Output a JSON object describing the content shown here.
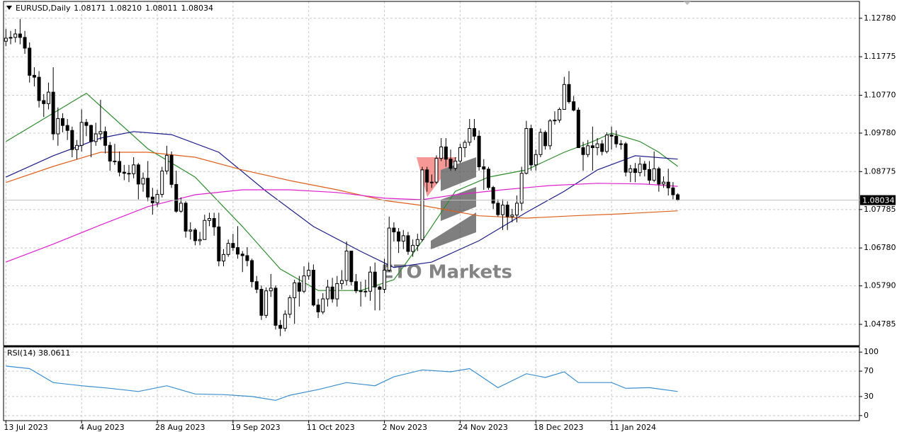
{
  "chart_data": {
    "type": "candlestick",
    "title": "EURUSD,Daily",
    "ohlc_labels": [
      "1.08171",
      "1.08210",
      "1.08011",
      "1.08034"
    ],
    "price_label": "1.08034",
    "watermark": "ETO Markets",
    "xlim": [
      -0.5,
      180.4
    ],
    "xticks": [
      {
        "value": 0,
        "label": "13 Jul 2023"
      },
      {
        "value": 16,
        "label": "4 Aug 2023"
      },
      {
        "value": 32,
        "label": "28 Aug 2023"
      },
      {
        "value": 48,
        "label": "19 Sep 2023"
      },
      {
        "value": 64,
        "label": "11 Oct 2023"
      },
      {
        "value": 80,
        "label": "2 Nov 2023"
      },
      {
        "value": 96,
        "label": "24 Nov 2023"
      },
      {
        "value": 112,
        "label": "18 Dec 2023"
      },
      {
        "value": 128,
        "label": "11 Jan 2024"
      }
    ],
    "ylim": [
      1.0423,
      1.1322
    ],
    "yticks": [
      {
        "value": 1.1278,
        "label": "1.12780"
      },
      {
        "value": 1.11775,
        "label": "1.11775"
      },
      {
        "value": 1.1077,
        "label": "1.10770"
      },
      {
        "value": 1.0978,
        "label": "1.09780"
      },
      {
        "value": 1.08775,
        "label": "1.08775"
      },
      {
        "value": 1.07785,
        "label": "1.07785"
      },
      {
        "value": 1.0678,
        "label": "1.06780"
      },
      {
        "value": 1.0579,
        "label": "1.05790"
      },
      {
        "value": 1.04785,
        "label": "1.04785"
      }
    ],
    "grid": true,
    "open": [
      1.1218,
      1.1226,
      1.1228,
      1.1237,
      1.1228,
      1.12,
      1.1129,
      1.1124,
      1.1063,
      1.1055,
      1.1085,
      1.0976,
      1.1016,
      1.0998,
      1.0985,
      1.0935,
      1.0946,
      1.1006,
      1.0998,
      1.0956,
      1.0976,
      1.0982,
      1.0946,
      1.0905,
      1.0904,
      1.0876,
      1.0873,
      1.0872,
      1.0895,
      1.0845,
      1.086,
      1.0811,
      1.0796,
      1.0818,
      1.0879,
      1.092,
      1.0844,
      1.0774,
      1.0795,
      1.0722,
      1.0725,
      1.0697,
      1.07,
      1.075,
      1.0755,
      1.0733,
      1.0644,
      1.0661,
      1.069,
      1.0679,
      1.0662,
      1.0658,
      1.0645,
      1.059,
      1.057,
      1.0502,
      1.0566,
      1.0573,
      1.0476,
      1.0468,
      1.0505,
      1.0548,
      1.0587,
      1.0565,
      1.0605,
      1.062,
      1.0529,
      1.0511,
      1.0545,
      1.0576,
      1.0545,
      1.0585,
      1.0593,
      1.067,
      1.059,
      1.0566,
      1.0564,
      1.0565,
      1.0615,
      1.0576,
      1.057,
      1.062,
      1.073,
      1.072,
      1.0696,
      1.071,
      1.0669,
      1.0685,
      1.07,
      1.0882,
      1.085,
      1.085,
      1.0912,
      1.0942,
      1.091,
      1.0886,
      1.0905,
      1.094,
      1.0954,
      1.099,
      1.097,
      1.089,
      1.0884,
      1.0836,
      1.0795,
      1.0765,
      1.079,
      1.076,
      1.0764,
      1.0795,
      1.0873,
      1.099,
      1.0895,
      1.0922,
      1.098,
      1.0945,
      1.101,
      1.1012,
      1.104,
      1.1105,
      1.106,
      1.1038,
      1.094,
      1.0922,
      1.0945,
      1.094,
      1.095,
      1.093,
      1.0973,
      1.097,
      1.095,
      1.095,
      1.0876,
      1.0885,
      1.0875,
      1.0897,
      1.0883,
      1.0855,
      1.0885,
      1.0845,
      1.085,
      1.0835,
      1.0817
    ],
    "high": [
      1.125,
      1.1245,
      1.125,
      1.1276,
      1.1245,
      1.1215,
      1.115,
      1.114,
      1.108,
      1.111,
      1.115,
      1.1045,
      1.103,
      1.1015,
      1.0995,
      1.096,
      1.104,
      1.1015,
      1.1,
      1.1005,
      1.1065,
      1.0995,
      1.0955,
      1.095,
      1.093,
      1.0895,
      1.0895,
      1.0915,
      1.09,
      1.0875,
      1.0905,
      1.0835,
      1.083,
      1.089,
      1.0945,
      1.093,
      1.088,
      1.081,
      1.08,
      1.0745,
      1.073,
      1.072,
      1.0765,
      1.077,
      1.077,
      1.077,
      1.0675,
      1.07,
      1.0715,
      1.0735,
      1.067,
      1.068,
      1.065,
      1.0605,
      1.058,
      1.0575,
      1.061,
      1.058,
      1.049,
      1.0515,
      1.0555,
      1.0595,
      1.0605,
      1.063,
      1.064,
      1.0635,
      1.0545,
      1.056,
      1.0595,
      1.06,
      1.0605,
      1.062,
      1.0695,
      1.067,
      1.061,
      1.059,
      1.0595,
      1.063,
      1.064,
      1.058,
      1.065,
      1.076,
      1.0745,
      1.073,
      1.0725,
      1.072,
      1.07,
      1.0715,
      1.089,
      1.089,
      1.087,
      1.092,
      1.0965,
      1.0965,
      1.0935,
      1.0915,
      1.095,
      1.096,
      1.1015,
      1.1015,
      1.0985,
      1.091,
      1.089,
      1.084,
      1.0805,
      1.0805,
      1.08,
      1.078,
      1.0815,
      1.089,
      1.101,
      1.1,
      1.0935,
      1.099,
      1.0985,
      1.1015,
      1.1035,
      1.1045,
      1.1125,
      1.114,
      1.1075,
      1.1045,
      1.0955,
      1.096,
      1.0995,
      1.0965,
      1.096,
      1.098,
      1.0995,
      1.0985,
      1.096,
      1.0955,
      1.0895,
      1.09,
      1.0915,
      1.0905,
      1.0905,
      1.093,
      1.089,
      1.0865,
      1.0885,
      1.085,
      1.0821
    ],
    "low": [
      1.1205,
      1.121,
      1.1215,
      1.121,
      1.1185,
      1.111,
      1.11,
      1.1045,
      1.102,
      1.104,
      1.096,
      1.0945,
      1.098,
      1.096,
      1.0915,
      1.091,
      1.093,
      1.097,
      1.0915,
      1.0945,
      1.096,
      1.0925,
      1.088,
      1.0895,
      1.0865,
      1.0855,
      1.085,
      1.086,
      1.0805,
      1.0825,
      1.08,
      1.0765,
      1.0785,
      1.081,
      1.087,
      1.0835,
      1.077,
      1.077,
      1.0705,
      1.07,
      1.0685,
      1.0685,
      1.07,
      1.0735,
      1.071,
      1.063,
      1.063,
      1.0655,
      1.067,
      1.065,
      1.0615,
      1.063,
      1.0575,
      1.056,
      1.049,
      1.0495,
      1.055,
      1.0465,
      1.0448,
      1.046,
      1.0495,
      1.048,
      1.0525,
      1.056,
      1.0595,
      1.0525,
      1.0495,
      1.0505,
      1.0525,
      1.0535,
      1.0525,
      1.057,
      1.058,
      1.058,
      1.056,
      1.0525,
      1.055,
      1.054,
      1.0515,
      1.0515,
      1.056,
      1.0615,
      1.0695,
      1.0665,
      1.0675,
      1.066,
      1.0655,
      1.067,
      1.0695,
      1.0825,
      1.0835,
      1.0845,
      1.0905,
      1.089,
      1.088,
      1.088,
      1.09,
      1.0915,
      1.0945,
      1.096,
      1.088,
      1.083,
      1.083,
      1.078,
      1.076,
      1.0725,
      1.0725,
      1.0745,
      1.0745,
      1.0775,
      1.087,
      1.088,
      1.088,
      1.0915,
      1.0935,
      1.0935,
      1.1,
      1.1005,
      1.104,
      1.1055,
      1.1035,
      1.094,
      1.088,
      1.0915,
      1.088,
      1.092,
      1.092,
      1.0925,
      1.0935,
      1.094,
      1.0935,
      1.0865,
      1.085,
      1.085,
      1.0865,
      1.0865,
      1.0845,
      1.085,
      1.0825,
      1.0835,
      1.0815,
      1.0805,
      1.0801
    ],
    "close": [
      1.1226,
      1.1228,
      1.1237,
      1.1228,
      1.12,
      1.1129,
      1.1124,
      1.1063,
      1.1055,
      1.1085,
      1.0976,
      1.1016,
      1.0998,
      1.0985,
      1.0935,
      1.0946,
      1.1006,
      1.0998,
      1.0956,
      1.0976,
      1.0982,
      1.0946,
      1.0905,
      1.0904,
      1.0876,
      1.0873,
      1.0872,
      1.0895,
      1.0845,
      1.086,
      1.0811,
      1.0796,
      1.0818,
      1.0879,
      1.092,
      1.0844,
      1.0774,
      1.0795,
      1.0722,
      1.0725,
      1.0697,
      1.07,
      1.075,
      1.0755,
      1.0733,
      1.0644,
      1.0661,
      1.069,
      1.0679,
      1.0662,
      1.0658,
      1.0645,
      1.059,
      1.057,
      1.0502,
      1.0566,
      1.0573,
      1.0476,
      1.0468,
      1.0505,
      1.0548,
      1.0587,
      1.0565,
      1.0605,
      1.062,
      1.0529,
      1.0511,
      1.0545,
      1.0576,
      1.0545,
      1.0585,
      1.0593,
      1.067,
      1.059,
      1.0566,
      1.0564,
      1.0565,
      1.0615,
      1.0576,
      1.057,
      1.062,
      1.073,
      1.072,
      1.0696,
      1.071,
      1.0669,
      1.0685,
      1.07,
      1.0882,
      1.085,
      1.085,
      1.0912,
      1.0942,
      1.091,
      1.0886,
      1.0905,
      1.094,
      1.0954,
      1.099,
      1.097,
      1.089,
      1.0884,
      1.0836,
      1.0795,
      1.0765,
      1.079,
      1.076,
      1.0764,
      1.0795,
      1.0873,
      1.099,
      1.0895,
      1.0922,
      1.098,
      1.0945,
      1.101,
      1.1012,
      1.104,
      1.1105,
      1.106,
      1.1038,
      1.094,
      1.0922,
      1.0945,
      1.094,
      1.095,
      1.093,
      1.0973,
      1.097,
      1.095,
      1.095,
      1.0876,
      1.0885,
      1.0875,
      1.0897,
      1.0883,
      1.0855,
      1.0885,
      1.0845,
      1.085,
      1.0835,
      1.0817,
      1.0803
    ],
    "lines": [
      {
        "color": "#2e8b2e",
        "x": [
          0,
          17,
          30,
          40,
          50,
          58,
          66,
          75,
          82,
          88,
          95,
          102,
          110,
          118,
          124,
          128,
          134,
          138,
          142
        ],
        "values": [
          1.0956,
          1.1082,
          1.0937,
          1.0863,
          1.0734,
          1.0623,
          1.0567,
          1.0567,
          1.0595,
          1.0697,
          1.0826,
          1.0863,
          1.0882,
          1.0928,
          1.0956,
          1.0978,
          1.0956,
          1.0928,
          1.0891
        ]
      },
      {
        "color": "#1c1c8c",
        "x": [
          0,
          10,
          20,
          27,
          35,
          45,
          55,
          65,
          75,
          82,
          90,
          100,
          110,
          118,
          125,
          133,
          142
        ],
        "values": [
          1.0863,
          1.0919,
          1.0965,
          1.0982,
          1.0974,
          1.0928,
          1.0826,
          1.0734,
          1.0669,
          1.0627,
          1.0641,
          1.0697,
          1.0771,
          1.0826,
          1.0882,
          1.0919,
          1.091
        ]
      },
      {
        "color": "#e0601a",
        "x": [
          0,
          10,
          20,
          30,
          40,
          50,
          60,
          70,
          80,
          88,
          100,
          110,
          120,
          130,
          142
        ],
        "values": [
          1.0849,
          1.0891,
          1.0928,
          1.0928,
          1.0915,
          1.0882,
          1.0854,
          1.083,
          1.0802,
          1.0789,
          1.0762,
          1.0756,
          1.0762,
          1.0767,
          1.0775
        ]
      },
      {
        "color": "#e020d0",
        "x": [
          0,
          10,
          20,
          30,
          40,
          50,
          60,
          70,
          80,
          88,
          95,
          105,
          115,
          125,
          135,
          142
        ],
        "values": [
          1.0641,
          1.0688,
          1.0738,
          1.0786,
          1.0817,
          1.083,
          1.083,
          1.0823,
          1.0808,
          1.0804,
          1.0817,
          1.083,
          1.0841,
          1.0847,
          1.0845,
          1.0839
        ]
      }
    ],
    "rsi": {
      "title": "RSI(14) 38.0611",
      "color": "#3a8fd0",
      "ylim": [
        -8,
        108
      ],
      "yticks": [
        100,
        70,
        30,
        0
      ],
      "x": [
        0,
        5,
        10,
        16,
        22,
        28,
        34,
        40,
        46,
        52,
        57,
        60,
        66,
        72,
        78,
        82,
        88,
        94,
        98,
        104,
        110,
        114,
        118,
        121,
        128,
        131,
        136,
        142
      ],
      "values": [
        78,
        74,
        52,
        47,
        43,
        38,
        47,
        34,
        33,
        30,
        24,
        32,
        41,
        52,
        47,
        61,
        72,
        69,
        74,
        44,
        66,
        60,
        69,
        52,
        52,
        43,
        44,
        38
      ]
    }
  }
}
